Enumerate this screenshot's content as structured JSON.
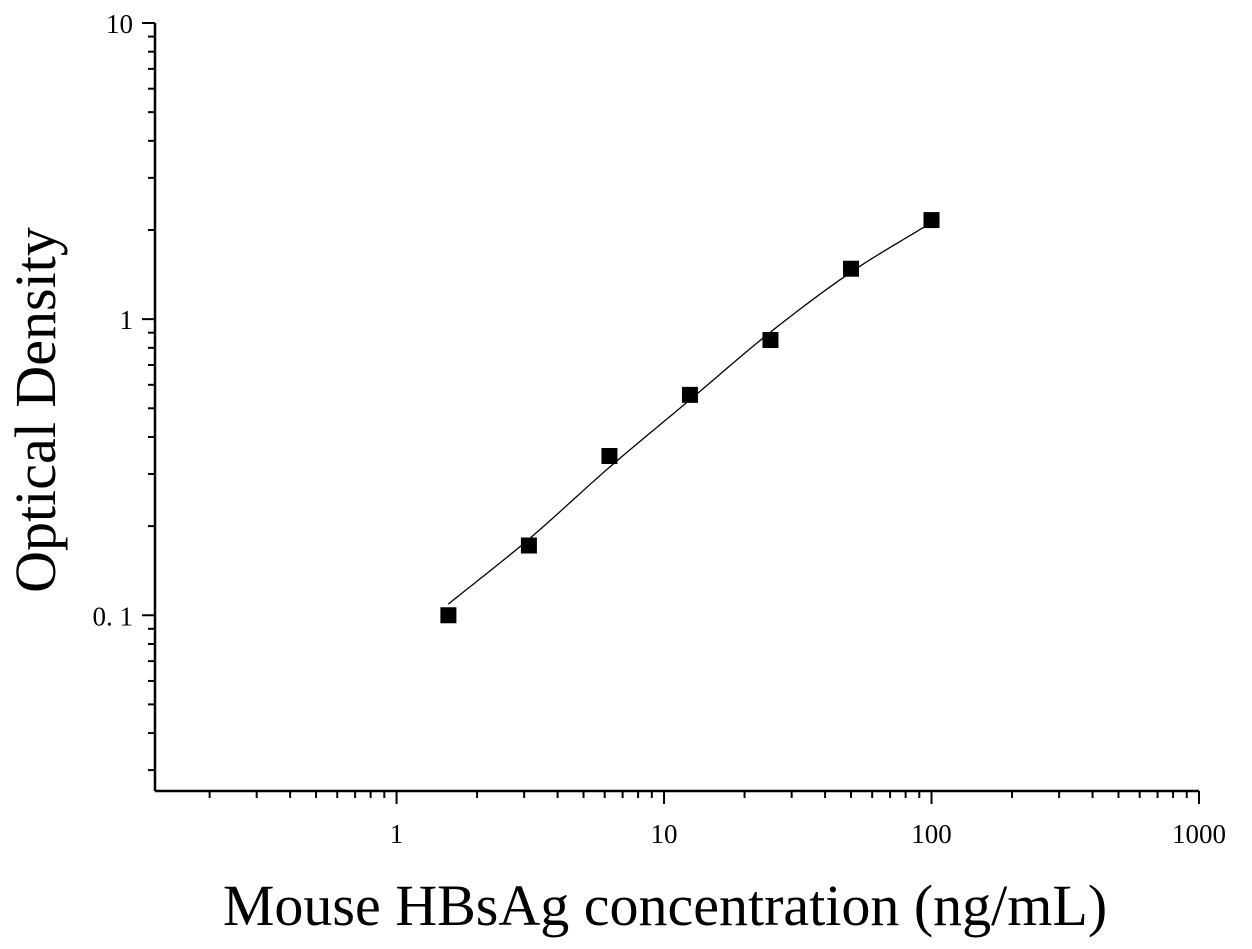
{
  "chart_data": {
    "type": "scatter",
    "title": "",
    "xlabel": "Mouse HBsAg concentration (ng/mL)",
    "ylabel": "Optical Density",
    "xscale": "log",
    "yscale": "log",
    "xlim": [
      0.125,
      1000
    ],
    "ylim": [
      0.0255,
      10
    ],
    "xticks": [
      1,
      10,
      100,
      1000
    ],
    "xtick_labels": [
      "1",
      "10",
      "100",
      "1000"
    ],
    "yticks": [
      0.1,
      1,
      10
    ],
    "ytick_labels": [
      "0. 1",
      "1",
      "10"
    ],
    "grid": false,
    "legend": "none",
    "series": [
      {
        "marker": "square",
        "color": "#000000",
        "x": [
          1.5625,
          3.125,
          6.25,
          12.5,
          25,
          50,
          100
        ],
        "y": [
          0.1,
          0.172,
          0.345,
          0.555,
          0.85,
          1.48,
          2.16
        ]
      }
    ],
    "fit_curve": {
      "style": "line",
      "color": "#000000",
      "x": [
        1.56,
        3.13,
        6.25,
        12.5,
        25,
        50,
        100
      ],
      "y": [
        0.109,
        0.181,
        0.316,
        0.534,
        0.904,
        1.44,
        2.12
      ]
    }
  }
}
